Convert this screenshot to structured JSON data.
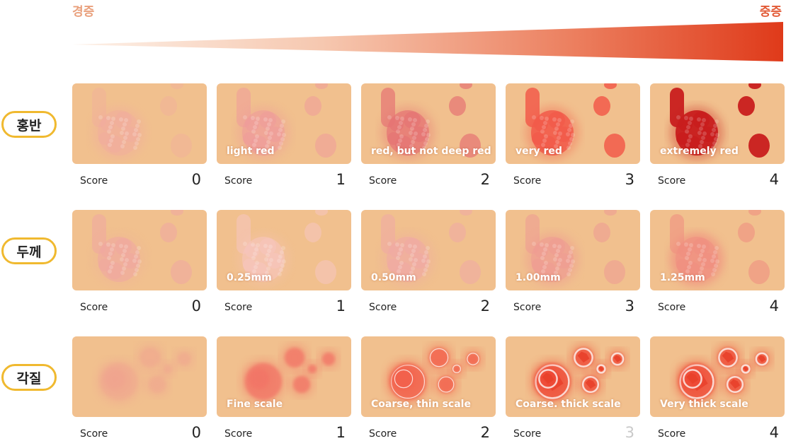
{
  "severity": {
    "mild": "경증",
    "severe": "중증"
  },
  "score_word": "Score",
  "rows": [
    {
      "label": "홍반",
      "type": "redness",
      "cells": [
        {
          "caption": "",
          "score": "0",
          "color": "#f2a9a0"
        },
        {
          "caption": "light red",
          "score": "1",
          "color": "#ef9a9a"
        },
        {
          "caption": "red, but not deep red",
          "score": "2",
          "color": "#e57373"
        },
        {
          "caption": "very red",
          "score": "3",
          "color": "#f25a4a"
        },
        {
          "caption": "extremely red",
          "score": "4",
          "color": "#c81e1e"
        }
      ]
    },
    {
      "label": "두께",
      "type": "thickness",
      "cells": [
        {
          "caption": "",
          "score": "0",
          "color": "#f0a8a0"
        },
        {
          "caption": "0.25mm",
          "score": "1",
          "color": "#f7c4bd"
        },
        {
          "caption": "0.50mm",
          "score": "2",
          "color": "#f0aaa3"
        },
        {
          "caption": "1.00mm",
          "score": "3",
          "color": "#ee9d92"
        },
        {
          "caption": "1.25mm",
          "score": "4",
          "color": "#f08f80"
        }
      ]
    },
    {
      "label": "각질",
      "type": "scale",
      "cells": [
        {
          "caption": "",
          "score": "0",
          "color": "#f0a090"
        },
        {
          "caption": "Fine scale",
          "score": "1",
          "color": "#f27566"
        },
        {
          "caption": "Coarse, thin scale",
          "score": "2",
          "color": "#f35e4c"
        },
        {
          "caption": "Coarse. thick scale",
          "score": "3",
          "color": "#ef4b37",
          "faded": true
        },
        {
          "caption": "Very thick scale",
          "score": "4",
          "color": "#ef4b37"
        }
      ]
    }
  ]
}
